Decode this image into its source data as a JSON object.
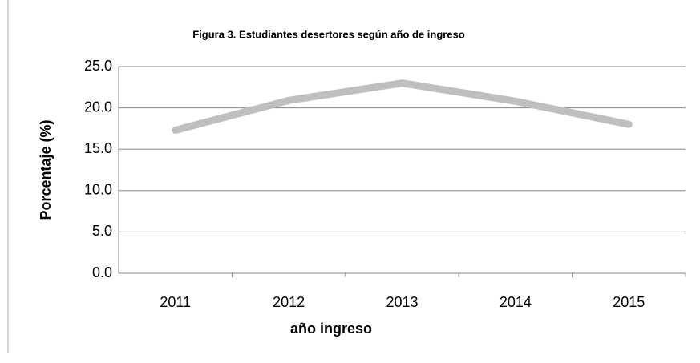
{
  "chart_data": {
    "type": "line",
    "title": "Figura 3. Estudiantes desertores según año de ingreso",
    "x_label": "año ingreso",
    "y_label": "Porcentaje (%)",
    "categories": [
      "2011",
      "2012",
      "2013",
      "2014",
      "2015"
    ],
    "values": [
      17.3,
      20.9,
      23.0,
      20.8,
      18.0
    ],
    "color": "#bfbfbf",
    "ylim": [
      0,
      25
    ],
    "yticks": [
      {
        "value": 0,
        "label": "0.0"
      },
      {
        "value": 5,
        "label": "5.0"
      },
      {
        "value": 10,
        "label": "10.0"
      },
      {
        "value": 15,
        "label": "15.0"
      },
      {
        "value": 20,
        "label": "20.0"
      },
      {
        "value": 25,
        "label": "25.0"
      }
    ],
    "grid": true
  }
}
